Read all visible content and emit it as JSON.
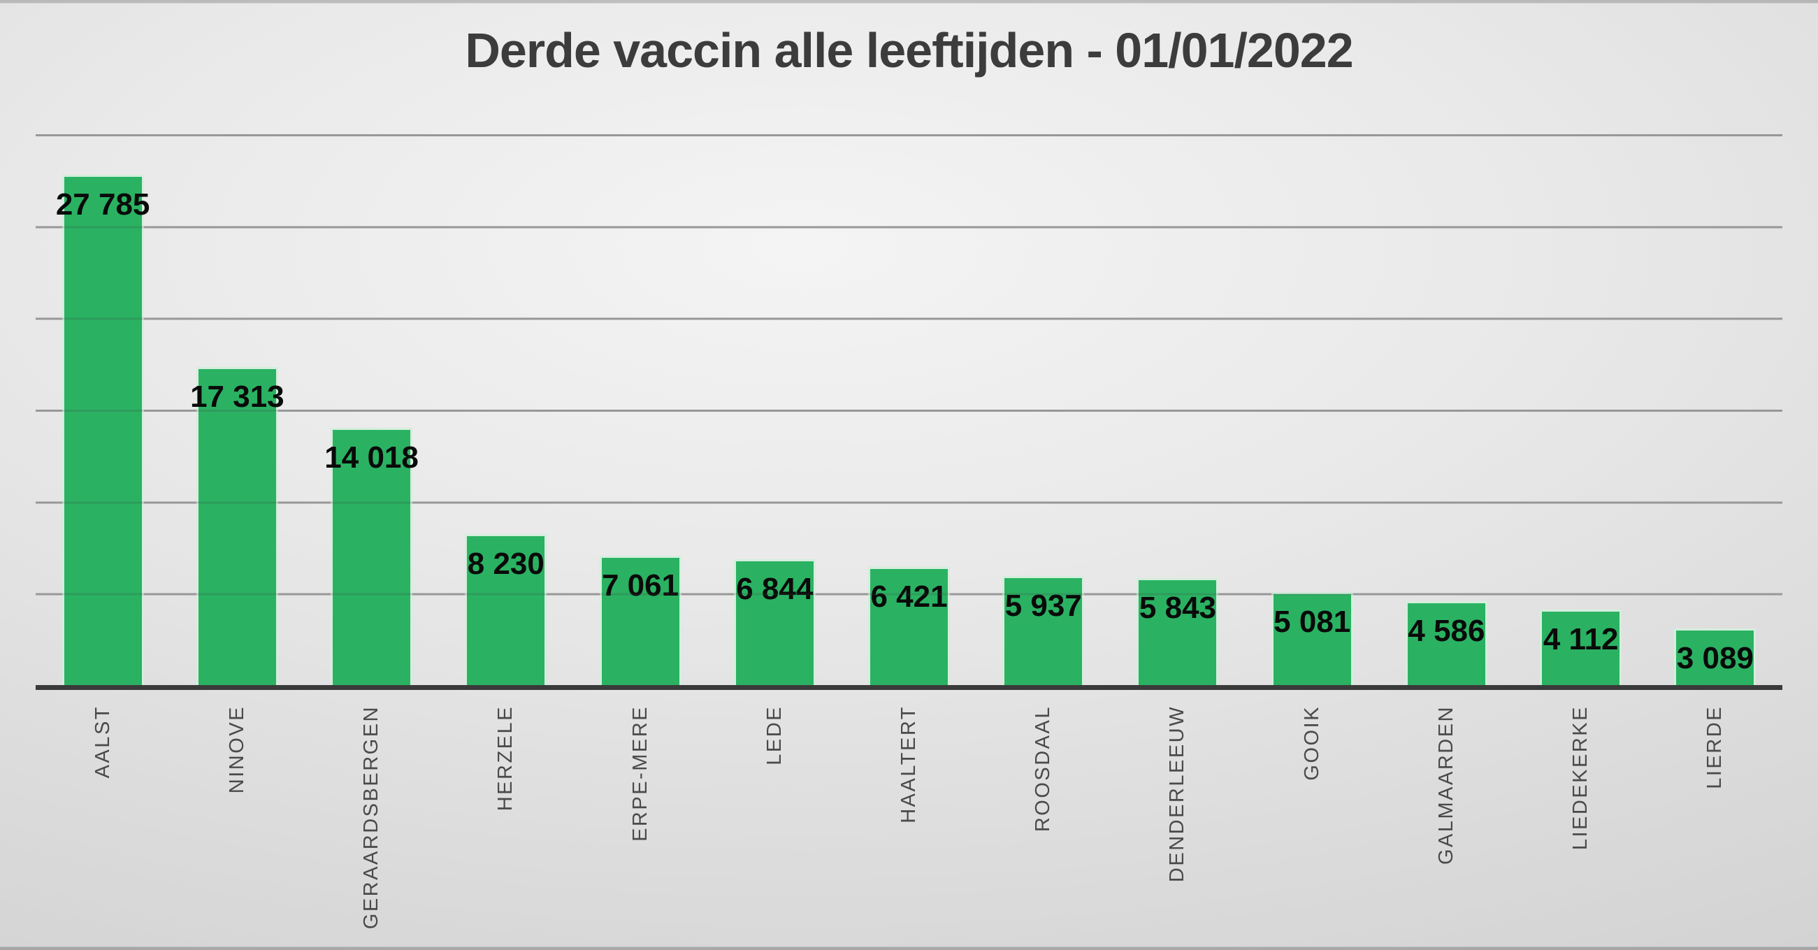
{
  "title": "Derde vaccin alle leeftijden - 01/01/2022",
  "chart_data": {
    "type": "bar",
    "title": "Derde vaccin alle leeftijden - 01/01/2022",
    "categories": [
      "AALST",
      "NINOVE",
      "GERAARDSBERGEN",
      "HERZELE",
      "ERPE-MERE",
      "LEDE",
      "HAALTERT",
      "ROOSDAAL",
      "DENDERLEEUW",
      "GOOIK",
      "GALMAARDEN",
      "LIEDEKERKE",
      "LIERDE"
    ],
    "values": [
      27785,
      17313,
      14018,
      8230,
      7061,
      6844,
      6421,
      5937,
      5843,
      5081,
      4586,
      4112,
      3089
    ],
    "value_labels": [
      "27 785",
      "17 313",
      "14 018",
      "8 230",
      "7 061",
      "6 844",
      "6 421",
      "5 937",
      "5 843",
      "5 081",
      "4 586",
      "4 112",
      "3 089"
    ],
    "xlabel": "",
    "ylabel": "",
    "ylim": [
      0,
      30000
    ],
    "gridline_interval": 5000,
    "grid": true,
    "legend": false,
    "y_tick_labels_visible": false,
    "data_label_position": "inside-end",
    "category_label_rotation_deg": 90,
    "colors": {
      "bar": "#2ab262",
      "bar_edge": "#d4eedd",
      "gridline": "#adadad",
      "axis_line": "#3a3a3a",
      "title": "#3c3c3c",
      "value_label": "#0a0a0a",
      "category_label": "#4a4a4a"
    }
  }
}
